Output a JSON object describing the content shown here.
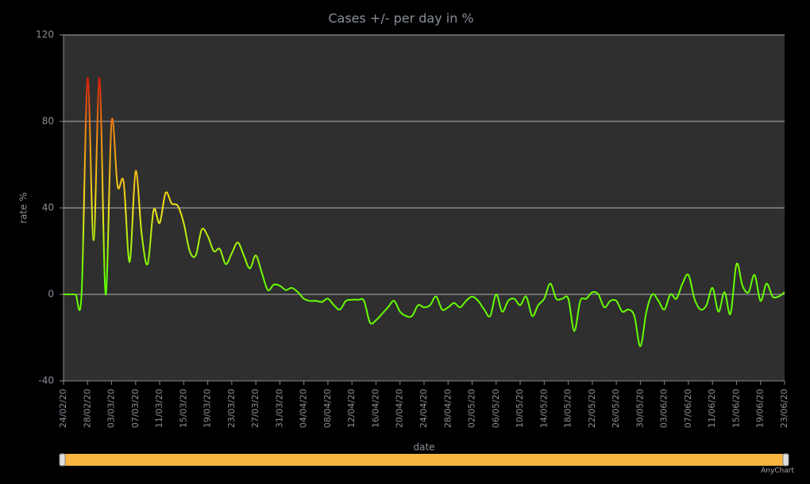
{
  "chart_data": {
    "type": "line",
    "title": "Cases +/- per day in %",
    "y_label": "rate %",
    "x_label": "date",
    "credits": "AnyChart",
    "categories": [
      "24/02/20",
      null,
      null,
      null,
      "28/02/20",
      null,
      null,
      null,
      "03/03/20",
      null,
      null,
      null,
      "07/03/20",
      null,
      null,
      null,
      "11/03/20",
      null,
      null,
      null,
      "15/03/20",
      null,
      null,
      null,
      "19/03/20",
      null,
      null,
      null,
      "23/03/20",
      null,
      null,
      null,
      "27/03/20",
      null,
      null,
      null,
      "31/03/20",
      null,
      null,
      null,
      "04/04/20",
      null,
      null,
      null,
      "08/04/20",
      null,
      null,
      null,
      "12/04/20",
      null,
      null,
      null,
      "16/04/20",
      null,
      null,
      null,
      "20/04/20",
      null,
      null,
      null,
      "24/04/20",
      null,
      null,
      null,
      "28/04/20",
      null,
      null,
      null,
      "02/05/20",
      null,
      null,
      null,
      "06/05/20",
      null,
      null,
      null,
      "10/05/20",
      null,
      null,
      null,
      "14/05/20",
      null,
      null,
      null,
      "18/05/20",
      null,
      null,
      null,
      "22/05/20",
      null,
      null,
      null,
      "26/05/20",
      null,
      null,
      null,
      "30/05/20",
      null,
      null,
      null,
      "03/06/20",
      null,
      null,
      null,
      "07/06/20",
      null,
      null,
      null,
      "11/06/20",
      null,
      null,
      null,
      "15/06/20",
      null,
      null,
      null,
      "19/06/20",
      null,
      null,
      null,
      "23/06/20"
    ],
    "values": [
      0,
      0,
      0,
      0,
      100,
      25,
      100,
      0,
      80,
      50,
      52,
      15,
      57,
      28,
      14,
      39,
      33,
      47,
      42,
      41,
      33,
      20,
      18,
      30,
      27,
      20,
      21,
      14,
      19,
      24,
      18,
      12,
      18,
      10,
      2,
      4.5,
      4,
      2,
      3,
      1,
      -2,
      -3,
      -3,
      -3.5,
      -2,
      -5,
      -7,
      -3,
      -2.5,
      -2.5,
      -3,
      -13,
      -12,
      -9,
      -6,
      -3,
      -8,
      -10,
      -10,
      -5,
      -6,
      -5,
      -1,
      -7,
      -6,
      -4,
      -6,
      -3,
      -1,
      -3,
      -7,
      -10,
      0,
      -8,
      -3,
      -2,
      -5,
      -1,
      -10,
      -5,
      -2,
      5,
      -2,
      -2,
      -2,
      -17,
      -3,
      -2,
      1,
      0,
      -6,
      -3,
      -3,
      -8,
      -7,
      -10,
      -24,
      -8,
      0,
      -3,
      -7,
      0,
      -2,
      5,
      9,
      -2,
      -7,
      -5,
      3,
      -8,
      1,
      -9,
      14,
      4,
      1,
      9,
      -3,
      5,
      -1,
      -1,
      1
    ],
    "color_scale": [
      {
        "value": 100,
        "color": "#d01c0c"
      },
      {
        "value": 75,
        "color": "#f08a10"
      },
      {
        "value": 40,
        "color": "#f2e21a"
      },
      {
        "value": 8,
        "color": "#66ff00"
      }
    ],
    "ylim": [
      -40,
      120
    ],
    "yticks": [
      -40,
      0,
      40,
      80,
      120
    ],
    "grid": true
  }
}
